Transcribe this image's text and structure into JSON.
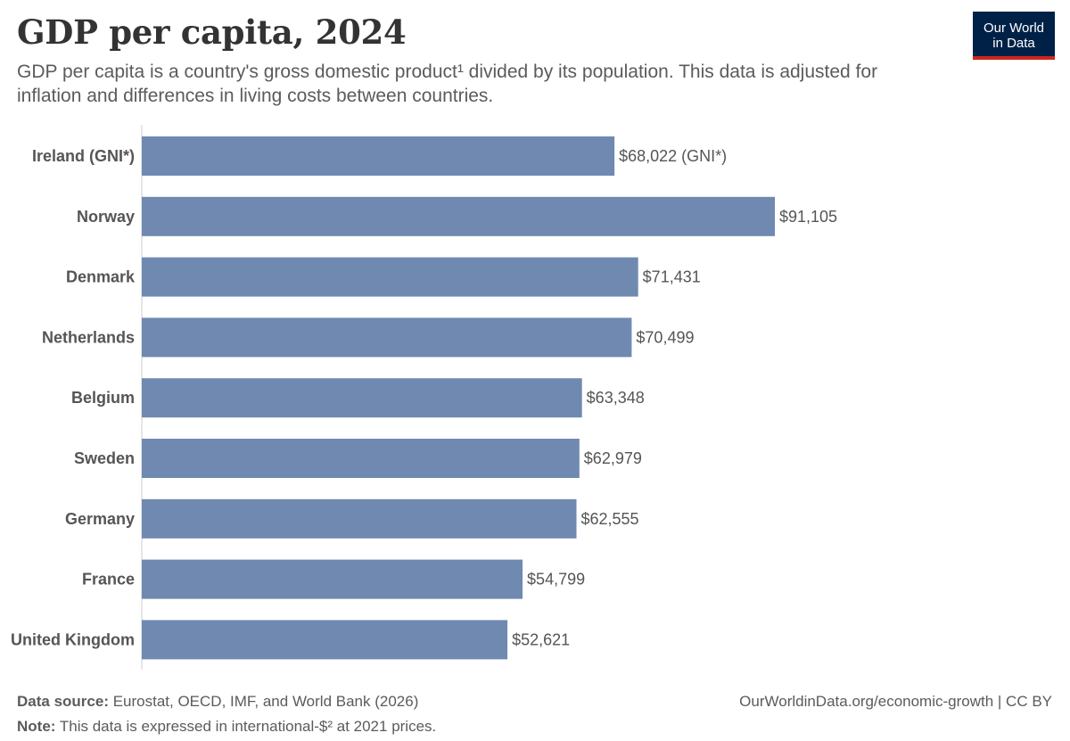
{
  "header": {
    "title": "GDP per capita, 2024",
    "subtitle": "GDP per capita is a country's gross domestic product¹ divided by its population. This data is adjusted for inflation and differences in living costs between countries."
  },
  "logo": {
    "line1": "Our World",
    "line2": "in Data",
    "bg_color": "#002147",
    "accent_color": "#ce261e"
  },
  "chart_data": {
    "type": "bar",
    "orientation": "horizontal",
    "title": "GDP per capita, 2024",
    "categories": [
      "Ireland (GNI*)",
      "Norway",
      "Denmark",
      "Netherlands",
      "Belgium",
      "Sweden",
      "Germany",
      "France",
      "United Kingdom"
    ],
    "values": [
      68022,
      91105,
      71431,
      70499,
      63348,
      62979,
      62555,
      54799,
      52621
    ],
    "value_labels": [
      "$68,022 (GNI*)",
      "$91,105",
      "$71,431",
      "$70,499",
      "$63,348",
      "$62,979",
      "$62,555",
      "$54,799",
      "$52,621"
    ],
    "bar_color": "#6f89b1",
    "xlim": [
      0,
      91105
    ],
    "grid": false,
    "legend": "none"
  },
  "footer": {
    "source_label": "Data source:",
    "source_text": " Eurostat, OECD, IMF, and World Bank (2026)",
    "note_label": "Note:",
    "note_text": " This data is expressed in international-$² at 2021 prices.",
    "credit": "OurWorldinData.org/economic-growth | CC BY"
  }
}
